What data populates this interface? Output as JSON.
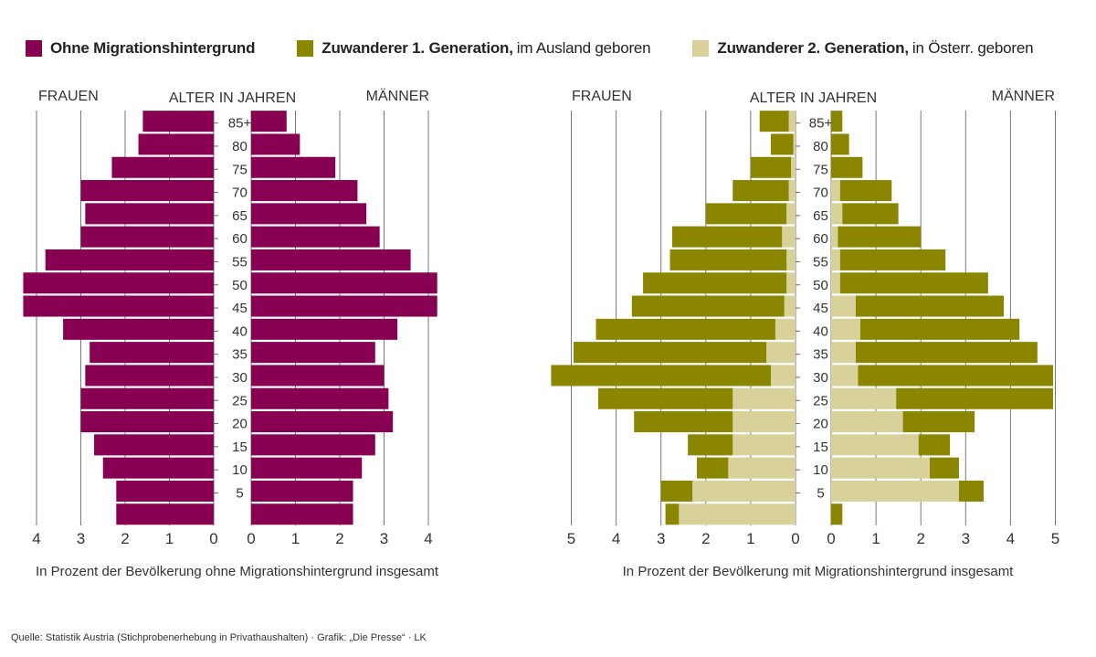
{
  "legend": [
    {
      "bold": "Ohne Migrationshintergrund",
      "normal": "",
      "color": "#870052"
    },
    {
      "bold": "Zuwanderer 1. Generation,",
      "normal": "im Ausland geboren",
      "color": "#8a8600"
    },
    {
      "bold": "Zuwanderer 2. Generation,",
      "normal": "in Österr. geboren",
      "color": "#d8d19a"
    }
  ],
  "source": "Quelle: Statistik Austria (Stichprobenerhebung in Privathaushalten) · Grafik: „Die Presse“ · LK",
  "chart_data": [
    {
      "type": "bar",
      "orientation": "horizontal-population-pyramid",
      "header_left": "FRAUEN",
      "header_center": "ALTER IN JAHREN",
      "header_right": "MÄNNER",
      "xlabel": "In Prozent der Bevölkerung ohne Migrationshintergrund insgesamt",
      "xlim": [
        0,
        4
      ],
      "x_ticks": [
        "4",
        "3",
        "2",
        "1",
        "0",
        "0",
        "1",
        "2",
        "3",
        "4"
      ],
      "age_labels": [
        "85+",
        "80",
        "75",
        "70",
        "65",
        "60",
        "55",
        "50",
        "45",
        "40",
        "35",
        "30",
        "25",
        "20",
        "15",
        "10",
        "5",
        ""
      ],
      "grid": true,
      "series": [
        {
          "name": "Ohne Migrationshintergrund",
          "side": "female",
          "values": [
            1.6,
            1.7,
            2.3,
            3.0,
            2.9,
            3.0,
            3.8,
            4.3,
            4.3,
            3.4,
            2.8,
            2.9,
            3.0,
            3.0,
            2.7,
            2.5,
            2.2,
            2.2
          ]
        },
        {
          "name": "Ohne Migrationshintergrund",
          "side": "male",
          "values": [
            0.8,
            1.1,
            1.9,
            2.4,
            2.6,
            2.9,
            3.6,
            4.2,
            4.2,
            3.3,
            2.8,
            3.0,
            3.1,
            3.2,
            2.8,
            2.5,
            2.3,
            2.3
          ]
        }
      ]
    },
    {
      "type": "bar",
      "orientation": "horizontal-population-pyramid-stacked",
      "header_left": "FRAUEN",
      "header_center": "ALTER IN JAHREN",
      "header_right": "MÄNNER",
      "xlabel": "In Prozent der Bevölkerung mit Migrationshintergrund insgesamt",
      "xlim": [
        0,
        5
      ],
      "x_ticks": [
        "5",
        "4",
        "3",
        "2",
        "1",
        "0",
        "0",
        "1",
        "2",
        "3",
        "4",
        "5"
      ],
      "age_labels": [
        "85+",
        "80",
        "75",
        "70",
        "65",
        "60",
        "55",
        "50",
        "45",
        "40",
        "35",
        "30",
        "25",
        "20",
        "15",
        "10",
        "5",
        ""
      ],
      "grid": true,
      "series": [
        {
          "name": "Zuwanderer 2. Generation",
          "side": "female",
          "values": [
            0.15,
            0.05,
            0.1,
            0.15,
            0.2,
            0.3,
            0.2,
            0.2,
            0.25,
            0.45,
            0.65,
            0.55,
            1.4,
            1.4,
            1.4,
            1.5,
            2.3,
            2.6
          ]
        },
        {
          "name": "Zuwanderer 1. Generation",
          "side": "female",
          "values": [
            0.65,
            0.5,
            0.9,
            1.25,
            1.8,
            2.45,
            2.6,
            3.2,
            3.4,
            4.0,
            4.3,
            4.9,
            3.0,
            2.2,
            1.0,
            0.7,
            0.7,
            0.3
          ]
        },
        {
          "name": "Zuwanderer 2. Generation",
          "side": "male",
          "values": [
            0.0,
            0.0,
            0.0,
            0.2,
            0.25,
            0.15,
            0.2,
            0.2,
            0.55,
            0.65,
            0.55,
            0.6,
            1.45,
            1.6,
            1.95,
            2.2,
            2.85,
            0.0
          ]
        },
        {
          "name": "Zuwanderer 1. Generation",
          "side": "male",
          "values": [
            0.25,
            0.4,
            0.7,
            1.15,
            1.25,
            1.85,
            2.35,
            3.3,
            3.3,
            3.55,
            4.05,
            4.35,
            3.5,
            1.6,
            0.7,
            0.65,
            0.55,
            0.25
          ]
        }
      ]
    }
  ]
}
